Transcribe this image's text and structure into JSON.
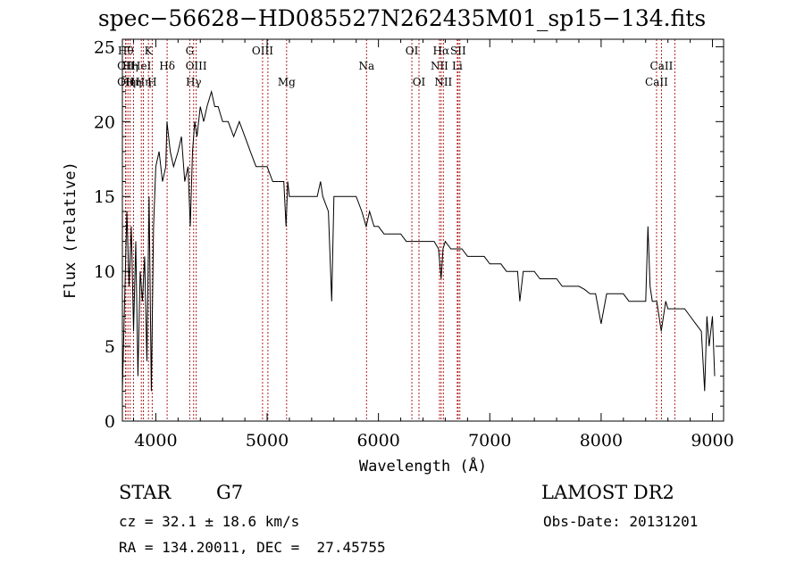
{
  "chart_data": {
    "type": "line",
    "title": "spec−56628−HD085527N262435M01_sp15−134.fits",
    "xlabel": "Wavelength (Å)",
    "ylabel": "Flux (relative)",
    "xlim": [
      3700,
      9100
    ],
    "ylim": [
      0,
      25.5
    ],
    "x_ticks": [
      4000,
      5000,
      6000,
      7000,
      8000,
      9000
    ],
    "y_ticks": [
      0,
      5,
      10,
      15,
      20,
      25
    ],
    "line_color": "#000000",
    "marker_color": "#b02020",
    "series": [
      {
        "x": [
          3700,
          3720,
          3740,
          3760,
          3780,
          3800,
          3820,
          3840,
          3860,
          3880,
          3900,
          3920,
          3940,
          3960,
          3980,
          4000,
          4030,
          4060,
          4090,
          4100,
          4130,
          4160,
          4200,
          4230,
          4260,
          4290,
          4310,
          4330,
          4350,
          4370,
          4400,
          4430,
          4460,
          4500,
          4530,
          4560,
          4600,
          4650,
          4700,
          4750,
          4800,
          4850,
          4900,
          4950,
          5000,
          5050,
          5100,
          5150,
          5170,
          5185,
          5200,
          5250,
          5300,
          5350,
          5400,
          5450,
          5480,
          5500,
          5550,
          5580,
          5600,
          5650,
          5700,
          5750,
          5800,
          5850,
          5890,
          5920,
          5960,
          6000,
          6050,
          6100,
          6150,
          6200,
          6250,
          6300,
          6350,
          6400,
          6450,
          6500,
          6540,
          6563,
          6580,
          6600,
          6650,
          6700,
          6750,
          6800,
          6850,
          6900,
          6950,
          7000,
          7050,
          7100,
          7150,
          7200,
          7250,
          7270,
          7300,
          7350,
          7400,
          7450,
          7500,
          7550,
          7600,
          7650,
          7700,
          7750,
          7800,
          7850,
          7900,
          7950,
          8000,
          8050,
          8100,
          8150,
          8200,
          8250,
          8300,
          8350,
          8400,
          8420,
          8440,
          8460,
          8500,
          8540,
          8580,
          8600,
          8650,
          8700,
          8750,
          8800,
          8850,
          8900,
          8930,
          8950,
          8970,
          9000,
          9020
        ],
        "y": [
          2,
          8,
          14,
          9,
          13,
          6,
          12,
          3,
          10,
          8,
          11,
          4,
          15,
          2,
          13,
          17,
          18,
          16,
          17,
          20,
          18,
          17,
          18,
          19,
          16,
          17,
          13,
          18,
          20,
          19,
          21,
          20,
          21,
          22,
          21,
          21,
          20,
          20,
          19,
          20,
          19,
          18,
          17,
          17,
          17,
          16,
          16,
          16,
          13,
          16,
          15,
          15,
          15,
          15,
          15,
          15,
          16,
          15,
          14,
          8,
          15,
          15,
          15,
          15,
          15,
          14,
          13,
          14,
          13,
          13,
          12.5,
          12.5,
          12.5,
          12.5,
          12,
          12,
          12,
          12,
          12,
          12,
          11.5,
          9.5,
          11.5,
          12,
          11.5,
          11.5,
          11.5,
          11,
          11,
          11,
          11,
          10.5,
          10.5,
          10.5,
          10,
          10,
          10,
          8,
          10,
          10,
          10,
          9.5,
          9.5,
          9.5,
          9.5,
          9,
          9,
          9,
          9,
          8.8,
          8.5,
          8.5,
          6.5,
          8.5,
          8.5,
          8.5,
          8.5,
          8,
          8,
          8,
          8,
          13,
          9,
          8,
          8,
          6,
          8,
          7.5,
          7.5,
          7.5,
          7.5,
          7,
          6.5,
          6,
          2,
          7,
          5,
          7,
          3
        ]
      }
    ],
    "line_markers": [
      {
        "x": 3730,
        "label": "Hθ",
        "row": 0
      },
      {
        "x": 3730,
        "label": "OII",
        "row": 1
      },
      {
        "x": 3730,
        "label": "OII",
        "row": 2
      },
      {
        "x": 3750,
        "label": "Hη",
        "row": 2
      },
      {
        "x": 3770,
        "label": "Hη",
        "row": 1
      },
      {
        "x": 3800,
        "label": "Hη",
        "row": 2
      },
      {
        "x": 3870,
        "label": "HeI",
        "row": 1
      },
      {
        "x": 3889,
        "label": "Hη",
        "row": 2
      },
      {
        "x": 3934,
        "label": "K",
        "row": 0
      },
      {
        "x": 3968,
        "label": "H",
        "row": 2
      },
      {
        "x": 4102,
        "label": "Hδ",
        "row": 1
      },
      {
        "x": 4305,
        "label": "G",
        "row": 0
      },
      {
        "x": 4340,
        "label": "Hγ",
        "row": 2
      },
      {
        "x": 4363,
        "label": "OIII",
        "row": 1
      },
      {
        "x": 4959,
        "label": "OIII",
        "row": 0
      },
      {
        "x": 5007,
        "label": "",
        "row": 0
      },
      {
        "x": 5175,
        "label": "Mg",
        "row": 2
      },
      {
        "x": 5893,
        "label": "Na",
        "row": 1
      },
      {
        "x": 6300,
        "label": "OI",
        "row": 0
      },
      {
        "x": 6364,
        "label": "OI",
        "row": 2
      },
      {
        "x": 6548,
        "label": "NII",
        "row": 1
      },
      {
        "x": 6563,
        "label": "Hα",
        "row": 0
      },
      {
        "x": 6583,
        "label": "NII",
        "row": 2
      },
      {
        "x": 6708,
        "label": "Li",
        "row": 1
      },
      {
        "x": 6716,
        "label": "SII",
        "row": 0
      },
      {
        "x": 6731,
        "label": "",
        "row": 0
      },
      {
        "x": 8498,
        "label": "CaII",
        "row": 2
      },
      {
        "x": 8542,
        "label": "CaII",
        "row": 1
      },
      {
        "x": 8662,
        "label": "",
        "row": 1
      }
    ]
  },
  "info": {
    "class_label": "STAR",
    "subclass": "G7",
    "survey": "LAMOST DR2",
    "redshift_text": "cz = 32.1 ± 18.6 km/s",
    "obs_date_text": "Obs-Date: 20131201",
    "coords_text": "RA = 134.20011, DEC =  27.45755"
  }
}
